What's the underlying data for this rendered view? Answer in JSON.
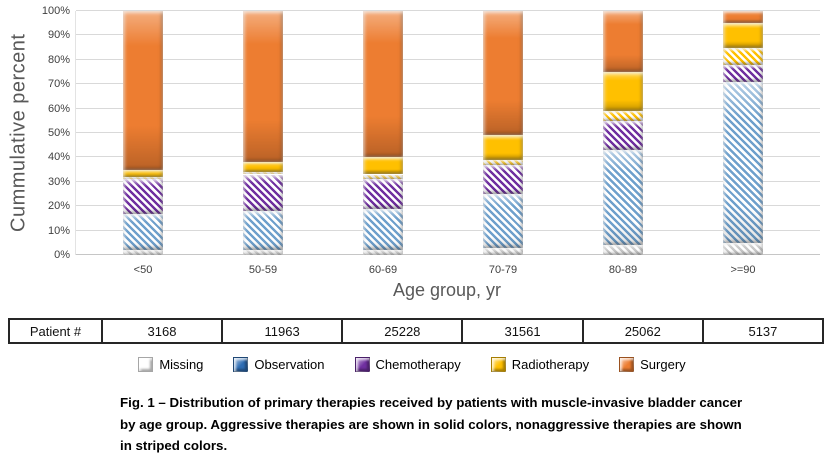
{
  "chart_data": {
    "type": "stacked_bar",
    "title": "",
    "ylabel": "Cummulative percent",
    "xlabel": "Age group, yr",
    "categories": [
      "<50",
      "50-59",
      "60-69",
      "70-79",
      "80-89",
      ">=90"
    ],
    "y_ticks": [
      "0%",
      "10%",
      "20%",
      "30%",
      "40%",
      "50%",
      "60%",
      "70%",
      "80%",
      "90%",
      "100%"
    ],
    "ylim": [
      0,
      100
    ],
    "grid": true,
    "legend_position": "bottom",
    "note": "striped pattern = nonaggressive therapy, solid = aggressive therapy",
    "series": [
      {
        "name": "Missing",
        "pattern": "striped",
        "color": "#C9C9C9",
        "values": [
          2,
          2,
          2,
          3,
          4,
          5
        ]
      },
      {
        "name": "Observation",
        "pattern": "striped",
        "color": "#6FA0CC",
        "values": [
          15,
          16,
          17,
          22,
          39,
          66
        ]
      },
      {
        "name": "Chemotherapy",
        "pattern": "striped",
        "color": "#7030A0",
        "values": [
          14,
          15,
          12,
          12,
          12,
          7
        ]
      },
      {
        "name": "Radiotherapy (nonaggressive)",
        "pattern": "striped",
        "color": "#FFC000",
        "values": [
          1,
          1,
          2,
          2,
          4,
          7
        ]
      },
      {
        "name": "Radiotherapy (aggressive)",
        "pattern": "solid",
        "color": "#FFC000",
        "values": [
          3,
          4,
          7,
          10,
          16,
          10
        ]
      },
      {
        "name": "Surgery",
        "pattern": "solid",
        "color": "#ED7D31",
        "values": [
          65,
          62,
          60,
          51,
          25,
          5
        ]
      }
    ]
  },
  "patient_table": {
    "header_label": "Patient #",
    "values": [
      "3168",
      "11963",
      "25228",
      "31561",
      "25062",
      "5137"
    ]
  },
  "legend": {
    "items": [
      {
        "label": "Missing",
        "color": "#FFFFFF"
      },
      {
        "label": "Observation",
        "color": "#2E6DB4"
      },
      {
        "label": "Chemotherapy",
        "color": "#7030A0"
      },
      {
        "label": "Radiotherapy",
        "color": "#FFC000"
      },
      {
        "label": "Surgery",
        "color": "#ED7D31"
      }
    ]
  },
  "caption": {
    "text": "Fig. 1 – Distribution of primary therapies received by patients with muscle-invasive bladder cancer by age group. Aggressive therapies are shown in solid colors, nonaggressive  therapies are shown in striped colors."
  }
}
